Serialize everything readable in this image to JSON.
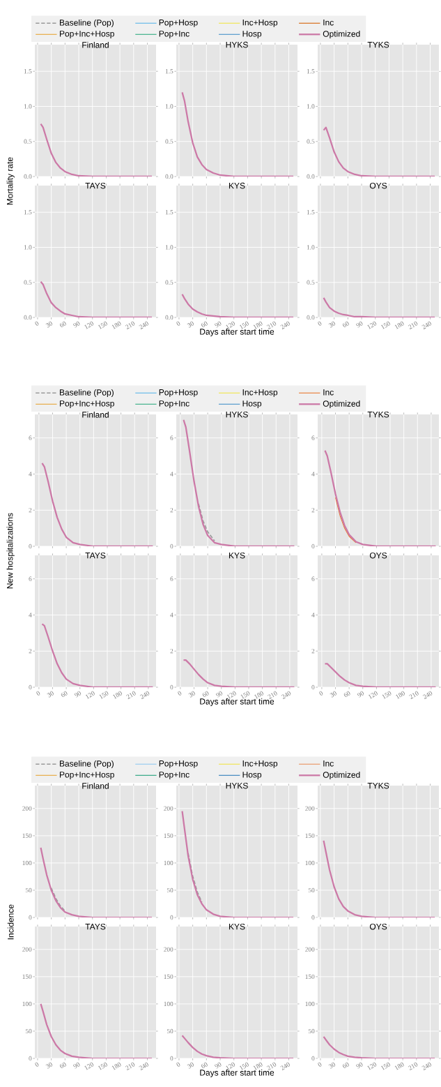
{
  "chart_data": [
    {
      "type": "line",
      "title": "Finland",
      "ylabel": "Mortality rate",
      "legend": "top",
      "grid": true,
      "tick_labels": "y",
      "xlim": [
        -6,
        259
      ],
      "ylim": [
        0,
        1.88
      ],
      "xticks": [
        0,
        30,
        60,
        90,
        120,
        150,
        180,
        210,
        240
      ],
      "yticks": [
        {
          "value": 0,
          "label": "0.0"
        },
        {
          "value": 0.5,
          "label": "0.5"
        },
        {
          "value": 1,
          "label": "1.0"
        },
        {
          "value": 1.5,
          "label": "1.5"
        }
      ],
      "x": [
        7,
        12,
        20,
        30,
        40,
        50,
        60,
        75,
        90,
        120,
        150,
        250
      ],
      "series": [
        {
          "name": "Baseline (Pop)",
          "color": "#999999",
          "line_style": "dashed",
          "values": [
            null,
            null,
            null,
            null,
            null,
            null,
            null,
            null,
            null,
            null,
            null,
            null
          ]
        },
        {
          "name": "Pop+Inc+Hosp",
          "color": "#E6A330",
          "values": [
            null,
            null,
            null,
            null,
            null,
            null,
            null,
            null,
            null,
            null,
            null,
            null
          ]
        },
        {
          "name": "Pop+Hosp",
          "color": "#56B4E9",
          "values": [
            null,
            null,
            null,
            null,
            null,
            null,
            null,
            null,
            null,
            null,
            null,
            null
          ]
        },
        {
          "name": "Pop+Inc",
          "color": "#2BAA7E",
          "values": [
            null,
            null,
            null,
            null,
            null,
            null,
            null,
            null,
            null,
            null,
            null,
            null
          ]
        },
        {
          "name": "Inc+Hosp",
          "color": "#F0E442",
          "values": [
            null,
            null,
            null,
            null,
            null,
            null,
            null,
            null,
            null,
            null,
            null,
            null
          ]
        },
        {
          "name": "Hosp",
          "color": "#4190C8",
          "values": [
            null,
            null,
            null,
            null,
            null,
            null,
            null,
            null,
            null,
            null,
            null,
            null
          ]
        },
        {
          "name": "Inc",
          "color": "#D55E00",
          "values": [
            null,
            null,
            null,
            null,
            null,
            null,
            null,
            null,
            null,
            null,
            null,
            null
          ]
        },
        {
          "name": "Optimized",
          "color": "#CC79A7",
          "values": [
            0.75,
            0.7,
            0.53,
            0.33,
            0.2,
            0.12,
            0.07,
            0.03,
            0.01,
            0,
            0,
            0
          ]
        }
      ]
    },
    {
      "type": "line",
      "title": "HYKS",
      "grid": true,
      "tick_labels": "y",
      "xlim": [
        -6,
        259
      ],
      "ylim": [
        0,
        1.88
      ],
      "xticks": [
        0,
        30,
        60,
        90,
        120,
        150,
        180,
        210,
        240
      ],
      "yticks": [
        {
          "value": 0,
          "label": "0.0"
        },
        {
          "value": 0.5,
          "label": "0.5"
        },
        {
          "value": 1,
          "label": "1.0"
        },
        {
          "value": 1.5,
          "label": "1.5"
        }
      ],
      "x": [
        7,
        12,
        20,
        30,
        40,
        50,
        60,
        75,
        90,
        120,
        150,
        250
      ],
      "series": [
        {
          "color": "#CC79A7",
          "values": [
            1.2,
            1.08,
            0.78,
            0.48,
            0.28,
            0.17,
            0.1,
            0.05,
            0.02,
            0,
            0,
            0
          ]
        }
      ]
    },
    {
      "type": "line",
      "title": "TYKS",
      "grid": true,
      "tick_labels": "y",
      "xlim": [
        -6,
        259
      ],
      "ylim": [
        0,
        1.88
      ],
      "xticks": [
        0,
        30,
        60,
        90,
        120,
        150,
        180,
        210,
        240
      ],
      "yticks": [
        {
          "value": 0,
          "label": "0.0"
        },
        {
          "value": 0.5,
          "label": "0.5"
        },
        {
          "value": 1,
          "label": "1.0"
        },
        {
          "value": 1.5,
          "label": "1.5"
        }
      ],
      "x": [
        7,
        12,
        20,
        30,
        40,
        50,
        60,
        75,
        90,
        120,
        150,
        250
      ],
      "series": [
        {
          "color": "#CC79A7",
          "values": [
            0.66,
            0.7,
            0.55,
            0.35,
            0.21,
            0.12,
            0.07,
            0.03,
            0.01,
            0,
            0,
            0
          ]
        }
      ]
    },
    {
      "type": "line",
      "title": "TAYS",
      "grid": true,
      "xlim": [
        -6,
        259
      ],
      "ylim": [
        0,
        1.88
      ],
      "xticks": [
        0,
        30,
        60,
        90,
        120,
        150,
        180,
        210,
        240
      ],
      "yticks": [
        {
          "value": 0,
          "label": "0.0"
        },
        {
          "value": 0.5,
          "label": "0.5"
        },
        {
          "value": 1,
          "label": "1.0"
        },
        {
          "value": 1.5,
          "label": "1.5"
        }
      ],
      "x": [
        7,
        12,
        20,
        30,
        40,
        50,
        60,
        75,
        90,
        120,
        150,
        250
      ],
      "series": [
        {
          "color": "#CC79A7",
          "values": [
            0.51,
            0.47,
            0.34,
            0.21,
            0.14,
            0.09,
            0.05,
            0.03,
            0.01,
            0,
            0,
            0
          ]
        }
      ]
    },
    {
      "type": "line",
      "title": "KYS",
      "xlabel": "Days after start time",
      "grid": true,
      "xlim": [
        -6,
        259
      ],
      "ylim": [
        0,
        1.88
      ],
      "xticks": [
        0,
        30,
        60,
        90,
        120,
        150,
        180,
        210,
        240
      ],
      "yticks": [
        {
          "value": 0,
          "label": "0.0"
        },
        {
          "value": 0.5,
          "label": "0.5"
        },
        {
          "value": 1,
          "label": "1.0"
        },
        {
          "value": 1.5,
          "label": "1.5"
        }
      ],
      "x": [
        7,
        12,
        20,
        30,
        40,
        50,
        60,
        75,
        90,
        120,
        150,
        250
      ],
      "series": [
        {
          "color": "#CC79A7",
          "values": [
            0.33,
            0.27,
            0.19,
            0.12,
            0.08,
            0.05,
            0.03,
            0.02,
            0.01,
            0,
            0,
            0
          ]
        }
      ]
    },
    {
      "type": "line",
      "title": "OYS",
      "grid": true,
      "xlim": [
        -6,
        259
      ],
      "ylim": [
        0,
        1.88
      ],
      "xticks": [
        0,
        30,
        60,
        90,
        120,
        150,
        180,
        210,
        240
      ],
      "yticks": [
        {
          "value": 0,
          "label": "0.0"
        },
        {
          "value": 0.5,
          "label": "0.5"
        },
        {
          "value": 1,
          "label": "1.0"
        },
        {
          "value": 1.5,
          "label": "1.5"
        }
      ],
      "x": [
        7,
        12,
        20,
        30,
        40,
        50,
        60,
        75,
        90,
        120,
        150,
        250
      ],
      "series": [
        {
          "color": "#CC79A7",
          "values": [
            0.28,
            0.22,
            0.14,
            0.09,
            0.06,
            0.04,
            0.03,
            0.01,
            0.01,
            0,
            0,
            0
          ]
        }
      ]
    },
    {
      "type": "line",
      "title": "Finland",
      "ylabel": "New hospitalizations",
      "legend": "top",
      "grid": true,
      "tick_labels": "y",
      "xlim": [
        -9,
        257
      ],
      "ylim": [
        0,
        7.3
      ],
      "xticks": [
        0,
        30,
        60,
        90,
        120,
        150,
        180,
        210,
        240
      ],
      "yticks": [
        0,
        2,
        4,
        6
      ],
      "x": [
        7,
        12,
        20,
        30,
        40,
        50,
        60,
        75,
        90,
        120,
        150,
        250
      ],
      "series": [
        {
          "name": "Baseline (Pop)",
          "color": "#999999",
          "line_style": "dashed",
          "values": [
            null,
            null,
            null,
            null,
            null,
            null,
            null,
            null,
            null,
            null,
            null,
            null
          ]
        },
        {
          "name": "Pop+Inc+Hosp",
          "color": "#E6A330",
          "values": [
            null,
            null,
            null,
            null,
            null,
            null,
            null,
            null,
            null,
            null,
            null,
            null
          ]
        },
        {
          "name": "Pop+Hosp",
          "color": "#56B4E9",
          "values": [
            null,
            null,
            null,
            null,
            null,
            null,
            null,
            null,
            null,
            null,
            null,
            null
          ]
        },
        {
          "name": "Pop+Inc",
          "color": "#2BAA7E",
          "values": [
            null,
            null,
            null,
            null,
            null,
            null,
            null,
            null,
            null,
            null,
            null,
            null
          ]
        },
        {
          "name": "Inc+Hosp",
          "color": "#F0E442",
          "values": [
            null,
            null,
            null,
            null,
            null,
            null,
            null,
            null,
            null,
            null,
            null,
            null
          ]
        },
        {
          "name": "Hosp",
          "color": "#4190C8",
          "values": [
            null,
            null,
            null,
            null,
            null,
            null,
            null,
            null,
            null,
            null,
            null,
            null
          ]
        },
        {
          "name": "Inc",
          "color": "#E8742A",
          "values": [
            null,
            null,
            null,
            null,
            null,
            null,
            null,
            null,
            null,
            null,
            null,
            null
          ]
        },
        {
          "name": "Optimized",
          "color": "#CC79A7",
          "values": [
            4.6,
            4.4,
            3.6,
            2.5,
            1.6,
            0.95,
            0.5,
            0.2,
            0.1,
            0,
            0,
            0
          ]
        }
      ]
    },
    {
      "type": "line",
      "title": "HYKS",
      "grid": true,
      "tick_labels": "y",
      "xlim": [
        -9,
        257
      ],
      "ylim": [
        0,
        7.3
      ],
      "xticks": [
        0,
        30,
        60,
        90,
        120,
        150,
        180,
        210,
        240
      ],
      "yticks": [
        0,
        2,
        4,
        6
      ],
      "x": [
        7,
        12,
        20,
        30,
        40,
        50,
        60,
        75,
        90,
        120,
        150,
        250
      ],
      "series": [
        {
          "color": "#999999",
          "line_style": "dashed",
          "values": [
            null,
            null,
            null,
            null,
            2.35,
            1.4,
            0.8,
            0.3,
            null,
            null,
            null,
            null
          ]
        },
        {
          "color": "#CC79A7",
          "values": [
            7.0,
            6.6,
            5.3,
            3.6,
            2.2,
            1.2,
            0.6,
            0.2,
            0.1,
            0,
            0,
            0
          ]
        }
      ]
    },
    {
      "type": "line",
      "title": "TYKS",
      "grid": true,
      "tick_labels": "y",
      "xlim": [
        -9,
        257
      ],
      "ylim": [
        0,
        7.3
      ],
      "xticks": [
        0,
        30,
        60,
        90,
        120,
        150,
        180,
        210,
        240
      ],
      "yticks": [
        0,
        2,
        4,
        6
      ],
      "x": [
        7,
        12,
        20,
        30,
        40,
        50,
        60,
        75,
        90,
        120,
        150,
        250
      ],
      "series": [
        {
          "color": "#E8742A",
          "values": [
            null,
            null,
            null,
            2.7,
            1.7,
            1.0,
            0.55,
            0.2,
            null,
            null,
            null,
            null
          ]
        },
        {
          "color": "#CC79A7",
          "values": [
            5.3,
            5.0,
            4.1,
            2.9,
            1.9,
            1.15,
            0.65,
            0.25,
            0.1,
            0,
            0,
            0
          ]
        }
      ]
    },
    {
      "type": "line",
      "title": "TAYS",
      "grid": true,
      "xlim": [
        -9,
        257
      ],
      "ylim": [
        0,
        7.3
      ],
      "xticks": [
        0,
        30,
        60,
        90,
        120,
        150,
        180,
        210,
        240
      ],
      "yticks": [
        0,
        2,
        4,
        6
      ],
      "x": [
        7,
        12,
        20,
        30,
        40,
        50,
        60,
        75,
        90,
        120,
        150,
        250
      ],
      "series": [
        {
          "color": "#CC79A7",
          "values": [
            3.5,
            3.4,
            2.8,
            2.0,
            1.3,
            0.8,
            0.45,
            0.2,
            0.1,
            0,
            0,
            0
          ]
        }
      ]
    },
    {
      "type": "line",
      "title": "KYS",
      "xlabel": "Days after start time",
      "grid": true,
      "xlim": [
        -9,
        257
      ],
      "ylim": [
        0,
        7.3
      ],
      "xticks": [
        0,
        30,
        60,
        90,
        120,
        150,
        180,
        210,
        240
      ],
      "yticks": [
        0,
        2,
        4,
        6
      ],
      "x": [
        7,
        12,
        20,
        30,
        40,
        50,
        60,
        75,
        90,
        120,
        150,
        250
      ],
      "series": [
        {
          "color": "#CC79A7",
          "values": [
            1.5,
            1.5,
            1.3,
            1.0,
            0.7,
            0.45,
            0.25,
            0.1,
            0.05,
            0,
            0,
            0
          ]
        }
      ]
    },
    {
      "type": "line",
      "title": "OYS",
      "grid": true,
      "xlim": [
        -9,
        257
      ],
      "ylim": [
        0,
        7.3
      ],
      "xticks": [
        0,
        30,
        60,
        90,
        120,
        150,
        180,
        210,
        240
      ],
      "yticks": [
        0,
        2,
        4,
        6
      ],
      "x": [
        7,
        12,
        20,
        30,
        40,
        50,
        60,
        75,
        90,
        120,
        150,
        250
      ],
      "series": [
        {
          "color": "#CC79A7",
          "values": [
            1.3,
            1.3,
            1.1,
            0.85,
            0.6,
            0.4,
            0.25,
            0.1,
            0.05,
            0,
            0,
            0
          ]
        }
      ]
    },
    {
      "type": "line",
      "title": "Finland",
      "ylabel": "Incidence",
      "legend": "top",
      "grid": true,
      "tick_labels": "y",
      "xlim": [
        -6,
        259
      ],
      "ylim": [
        0,
        242
      ],
      "xticks": [
        0,
        30,
        60,
        90,
        120,
        150,
        180,
        210,
        240
      ],
      "yticks": [
        0,
        50,
        100,
        150,
        200
      ],
      "x": [
        7,
        12,
        20,
        30,
        40,
        50,
        60,
        75,
        90,
        120,
        150,
        250
      ],
      "series": [
        {
          "name": "Baseline (Pop)",
          "color": "#999999",
          "line_style": "dashed",
          "values": [
            null,
            null,
            null,
            54,
            35,
            21,
            12,
            null,
            null,
            null,
            null,
            null
          ]
        },
        {
          "name": "Pop+Inc+Hosp",
          "color": "#E6A330",
          "values": [
            null,
            null,
            null,
            null,
            null,
            null,
            null,
            null,
            null,
            null,
            null,
            null
          ]
        },
        {
          "name": "Pop+Hosp",
          "color": "#8EC8F0",
          "values": [
            null,
            null,
            null,
            null,
            null,
            null,
            null,
            null,
            null,
            null,
            null,
            null
          ]
        },
        {
          "name": "Pop+Inc",
          "color": "#1A9E77",
          "values": [
            null,
            null,
            null,
            null,
            null,
            null,
            null,
            null,
            null,
            null,
            null,
            null
          ]
        },
        {
          "name": "Inc+Hosp",
          "color": "#F0E442",
          "values": [
            null,
            null,
            null,
            null,
            null,
            null,
            null,
            null,
            null,
            null,
            null,
            null
          ]
        },
        {
          "name": "Hosp",
          "color": "#2A7AB8",
          "values": [
            null,
            null,
            null,
            null,
            null,
            null,
            null,
            null,
            null,
            null,
            null,
            null
          ]
        },
        {
          "name": "Inc",
          "color": "#E8905A",
          "values": [
            null,
            null,
            null,
            null,
            null,
            null,
            null,
            null,
            null,
            null,
            null,
            null
          ]
        },
        {
          "name": "Optimized",
          "color": "#CC79A7",
          "values": [
            128,
            108,
            78,
            50,
            31,
            18,
            10,
            5,
            2,
            0,
            0,
            0
          ]
        }
      ]
    },
    {
      "type": "line",
      "title": "HYKS",
      "grid": true,
      "tick_labels": "y",
      "xlim": [
        -6,
        259
      ],
      "ylim": [
        0,
        242
      ],
      "xticks": [
        0,
        30,
        60,
        90,
        120,
        150,
        180,
        210,
        240
      ],
      "yticks": [
        0,
        50,
        100,
        150,
        200
      ],
      "x": [
        7,
        12,
        20,
        30,
        40,
        50,
        60,
        75,
        90,
        120,
        150,
        250
      ],
      "series": [
        {
          "color": "#999999",
          "line_style": "dashed",
          "values": [
            null,
            null,
            118,
            76,
            47,
            28,
            null,
            null,
            null,
            null,
            null,
            null
          ]
        },
        {
          "color": "#CC79A7",
          "values": [
            195,
            163,
            113,
            70,
            42,
            25,
            14,
            6,
            2,
            0,
            0,
            0
          ]
        }
      ]
    },
    {
      "type": "line",
      "title": "TYKS",
      "grid": true,
      "tick_labels": "y",
      "xlim": [
        -6,
        259
      ],
      "ylim": [
        0,
        242
      ],
      "xticks": [
        0,
        30,
        60,
        90,
        120,
        150,
        180,
        210,
        240
      ],
      "yticks": [
        0,
        50,
        100,
        150,
        200
      ],
      "x": [
        7,
        12,
        20,
        30,
        40,
        50,
        60,
        75,
        90,
        120,
        150,
        250
      ],
      "series": [
        {
          "color": "#CC79A7",
          "values": [
            141,
            120,
            87,
            56,
            34,
            20,
            12,
            5,
            2,
            0,
            0,
            0
          ]
        }
      ]
    },
    {
      "type": "line",
      "title": "TAYS",
      "grid": true,
      "xlim": [
        -6,
        259
      ],
      "ylim": [
        0,
        242
      ],
      "xticks": [
        0,
        30,
        60,
        90,
        120,
        150,
        180,
        210,
        240
      ],
      "yticks": [
        0,
        50,
        100,
        150,
        200
      ],
      "x": [
        7,
        12,
        20,
        30,
        40,
        50,
        60,
        75,
        90,
        120,
        150,
        250
      ],
      "series": [
        {
          "color": "#CC79A7",
          "values": [
            100,
            86,
            62,
            40,
            25,
            15,
            9,
            4,
            2,
            0,
            0,
            0
          ]
        }
      ]
    },
    {
      "type": "line",
      "title": "KYS",
      "xlabel": "Days after start time",
      "grid": true,
      "xlim": [
        -6,
        259
      ],
      "ylim": [
        0,
        242
      ],
      "xticks": [
        0,
        30,
        60,
        90,
        120,
        150,
        180,
        210,
        240
      ],
      "yticks": [
        0,
        50,
        100,
        150,
        200
      ],
      "x": [
        7,
        12,
        20,
        30,
        40,
        50,
        60,
        75,
        90,
        120,
        150,
        250
      ],
      "series": [
        {
          "color": "#CC79A7",
          "values": [
            42,
            37,
            29,
            20,
            13,
            8,
            5,
            2,
            1,
            0,
            0,
            0
          ]
        }
      ]
    },
    {
      "type": "line",
      "title": "OYS",
      "grid": true,
      "xlim": [
        -6,
        259
      ],
      "ylim": [
        0,
        242
      ],
      "xticks": [
        0,
        30,
        60,
        90,
        120,
        150,
        180,
        210,
        240
      ],
      "yticks": [
        0,
        50,
        100,
        150,
        200
      ],
      "x": [
        7,
        12,
        20,
        30,
        40,
        50,
        60,
        75,
        90,
        120,
        150,
        250
      ],
      "series": [
        {
          "color": "#CC79A7",
          "values": [
            40,
            34,
            25,
            17,
            11,
            7,
            4,
            2,
            1,
            0,
            0,
            0
          ]
        }
      ]
    }
  ]
}
